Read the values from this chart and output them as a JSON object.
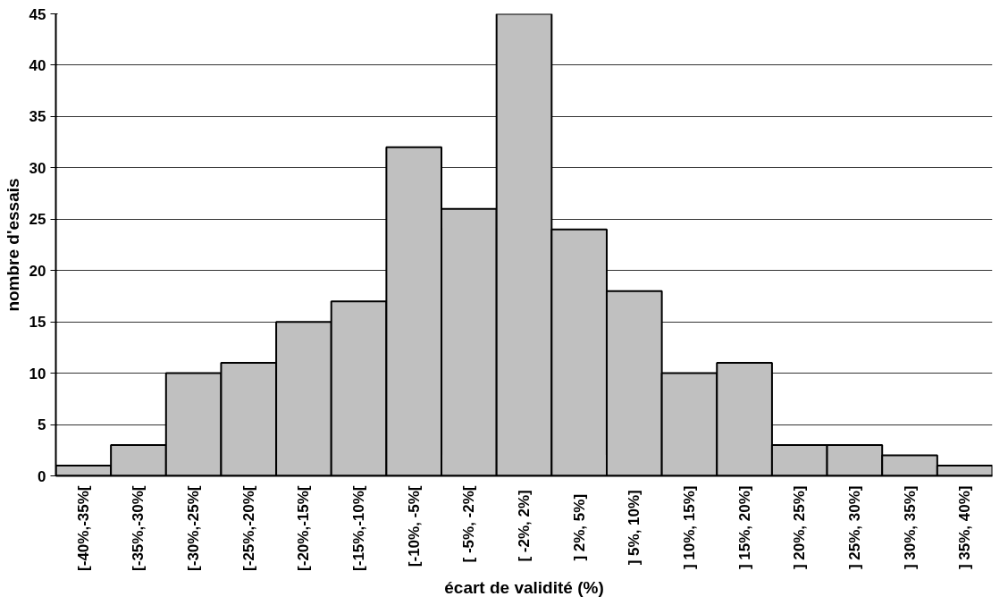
{
  "chart_data": {
    "type": "bar",
    "xlabel": "écart de validité (%)",
    "ylabel": "nombre d'essais",
    "categories": [
      "[-40%,-35%[",
      "[-35%,-30%[",
      "[-30%,-25%[",
      "[-25%,-20%[",
      "[-20%,-15%[",
      "[-15%,-10%[",
      "[-10%, -5%[",
      "[ -5%, -2%[",
      "[ -2%,  2%]",
      "]  2%,  5%]",
      "]  5%, 10%]",
      "] 10%, 15%]",
      "] 15%, 20%]",
      "] 20%, 25%]",
      "] 25%, 30%]",
      "] 30%, 35%]",
      "] 35%, 40%]"
    ],
    "values": [
      1,
      3,
      10,
      11,
      15,
      17,
      32,
      26,
      45,
      24,
      18,
      10,
      11,
      3,
      3,
      2,
      1
    ],
    "color": "#c0c0c0",
    "ylim": [
      0,
      45
    ],
    "yticks": [
      0,
      5,
      10,
      15,
      20,
      25,
      30,
      35,
      40,
      45
    ],
    "grid": "y"
  }
}
